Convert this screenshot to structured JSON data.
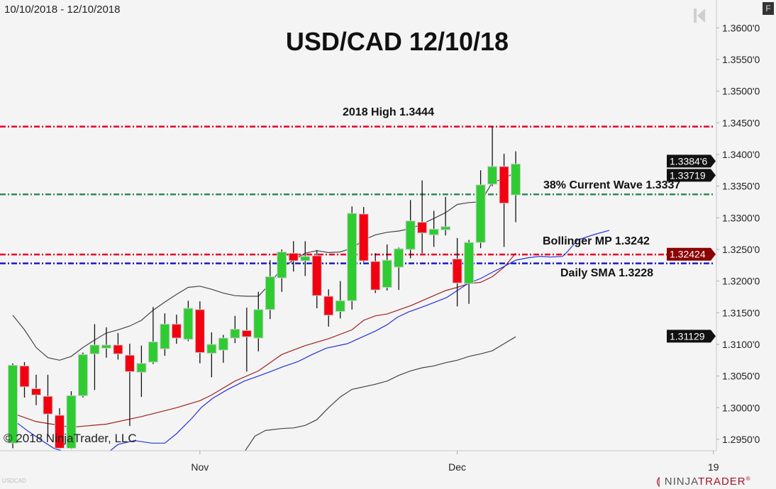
{
  "header": {
    "date_range": "10/10/2018 - 12/10/2018",
    "f_button": "F"
  },
  "footer": {
    "symbol": "USDCAD",
    "copyright": "© 2018 NinjaTrader, LLC",
    "logo_a": "NINJA",
    "logo_b": "TRADER",
    "logo_mark": "®"
  },
  "colors": {
    "background": "#f4f4f4",
    "up": "#2ecc31",
    "down": "#f20010",
    "high_line": "#e8002a",
    "wave_line": "#2e8b57",
    "bollinger_line": "#e8002a",
    "sma_line": "#1a1acc",
    "upper_line": "#444444",
    "middle_line": "#a02020",
    "blue_line": "#2233dd",
    "lower_line": "#444444"
  },
  "chart_data": {
    "type": "candlestick",
    "title": "USD/CAD 12/10/18",
    "ylim": [
      1.2932,
      1.3644
    ],
    "yticks": [
      {
        "value": 1.36,
        "label": "1.3600'0"
      },
      {
        "value": 1.355,
        "label": "1.3550'0"
      },
      {
        "value": 1.35,
        "label": "1.3500'0"
      },
      {
        "value": 1.345,
        "label": "1.3450'0"
      },
      {
        "value": 1.34,
        "label": "1.3400'0"
      },
      {
        "value": 1.335,
        "label": "1.3350'0"
      },
      {
        "value": 1.33,
        "label": "1.3300'0"
      },
      {
        "value": 1.325,
        "label": "1.3250'0"
      },
      {
        "value": 1.32,
        "label": "1.3200'0"
      },
      {
        "value": 1.315,
        "label": "1.3150'0"
      },
      {
        "value": 1.31,
        "label": "1.3100'0"
      },
      {
        "value": 1.305,
        "label": "1.3050'0"
      },
      {
        "value": 1.3,
        "label": "1.3000'0"
      },
      {
        "value": 1.295,
        "label": "1.2950'0"
      }
    ],
    "xticks": [
      {
        "label": "Nov",
        "date": "2018-11-01"
      },
      {
        "label": "Dec",
        "date": "2018-12-03"
      },
      {
        "label": "19",
        "date": "2019-01-01"
      }
    ],
    "candles": [
      [
        "2018-10-10",
        1.2944,
        1.307,
        1.2936,
        1.3067
      ],
      [
        "2018-10-11",
        1.3066,
        1.3072,
        1.3016,
        1.3033
      ],
      [
        "2018-10-12",
        1.303,
        1.3052,
        1.3004,
        1.302
      ],
      [
        "2018-10-15",
        1.3018,
        1.3052,
        1.2955,
        1.299
      ],
      [
        "2018-10-16",
        1.2988,
        1.2999,
        1.2935,
        1.2936
      ],
      [
        "2018-10-17",
        1.2936,
        1.3026,
        1.2935,
        1.3019
      ],
      [
        "2018-10-18",
        1.3019,
        1.3087,
        1.3016,
        1.3084
      ],
      [
        "2018-10-19",
        1.3085,
        1.3132,
        1.3028,
        1.3099
      ],
      [
        "2018-10-22",
        1.3094,
        1.3127,
        1.3079,
        1.3099
      ],
      [
        "2018-10-23",
        1.3099,
        1.3118,
        1.3076,
        1.3085
      ],
      [
        "2018-10-24",
        1.3083,
        1.3101,
        1.2971,
        1.3057
      ],
      [
        "2018-10-25",
        1.3056,
        1.3098,
        1.3017,
        1.307
      ],
      [
        "2018-10-26",
        1.3072,
        1.3159,
        1.3069,
        1.3104
      ],
      [
        "2018-10-29",
        1.3093,
        1.3149,
        1.3082,
        1.3132
      ],
      [
        "2018-10-30",
        1.3132,
        1.3147,
        1.3101,
        1.311
      ],
      [
        "2018-10-31",
        1.3108,
        1.3169,
        1.3105,
        1.3157
      ],
      [
        "2018-11-01",
        1.3155,
        1.3168,
        1.307,
        1.3087
      ],
      [
        "2018-11-02",
        1.3086,
        1.3119,
        1.3048,
        1.31
      ],
      [
        "2018-11-05",
        1.3091,
        1.3115,
        1.3071,
        1.311
      ],
      [
        "2018-11-06",
        1.311,
        1.3145,
        1.3102,
        1.3124
      ],
      [
        "2018-11-07",
        1.3122,
        1.3158,
        1.3057,
        1.3112
      ],
      [
        "2018-11-08",
        1.311,
        1.3183,
        1.3089,
        1.3155
      ],
      [
        "2018-11-09",
        1.3155,
        1.3233,
        1.314,
        1.3207
      ],
      [
        "2018-11-12",
        1.3205,
        1.325,
        1.3183,
        1.3246
      ],
      [
        "2018-11-13",
        1.3244,
        1.3263,
        1.3215,
        1.3232
      ],
      [
        "2018-11-14",
        1.3232,
        1.3263,
        1.3208,
        1.3239
      ],
      [
        "2018-11-15",
        1.324,
        1.3249,
        1.3157,
        1.3177
      ],
      [
        "2018-11-16",
        1.3176,
        1.3187,
        1.3128,
        1.3146
      ],
      [
        "2018-11-19",
        1.3152,
        1.32,
        1.3141,
        1.3169
      ],
      [
        "2018-11-20",
        1.3169,
        1.3318,
        1.3155,
        1.3307
      ],
      [
        "2018-11-21",
        1.3306,
        1.3317,
        1.323,
        1.3232
      ],
      [
        "2018-11-22",
        1.3231,
        1.3244,
        1.3181,
        1.3186
      ],
      [
        "2018-11-23",
        1.319,
        1.3258,
        1.3185,
        1.3233
      ],
      [
        "2018-11-26",
        1.3222,
        1.3253,
        1.3186,
        1.3251
      ],
      [
        "2018-11-27",
        1.325,
        1.3328,
        1.3236,
        1.3295
      ],
      [
        "2018-11-28",
        1.3293,
        1.3359,
        1.3244,
        1.3276
      ],
      [
        "2018-11-29",
        1.3273,
        1.3311,
        1.3254,
        1.3282
      ],
      [
        "2018-11-30",
        1.3281,
        1.3333,
        1.3272,
        1.3286
      ],
      [
        "2018-12-03",
        1.3235,
        1.3268,
        1.316,
        1.3197
      ],
      [
        "2018-12-04",
        1.3196,
        1.3265,
        1.3164,
        1.3261
      ],
      [
        "2018-12-05",
        1.3261,
        1.3375,
        1.3252,
        1.3352
      ],
      [
        "2018-12-06",
        1.3353,
        1.3444,
        1.335,
        1.3381
      ],
      [
        "2018-12-07",
        1.3381,
        1.3401,
        1.3254,
        1.3323
      ],
      [
        "2018-12-10",
        1.3336,
        1.3405,
        1.3293,
        1.3385
      ]
    ],
    "lines": [
      {
        "key": "upper_line",
        "points": [
          [
            0,
            1.3146
          ],
          [
            1,
            1.3123
          ],
          [
            2,
            1.3095
          ],
          [
            3,
            1.3079
          ],
          [
            4,
            1.3075
          ],
          [
            5,
            1.3081
          ],
          [
            6,
            1.3095
          ],
          [
            7,
            1.3107
          ],
          [
            8,
            1.3118
          ],
          [
            9,
            1.3123
          ],
          [
            10,
            1.3129
          ],
          [
            11,
            1.3138
          ],
          [
            12,
            1.3154
          ],
          [
            13,
            1.3167
          ],
          [
            14,
            1.3179
          ],
          [
            15,
            1.319
          ],
          [
            16,
            1.3192
          ],
          [
            17,
            1.3187
          ],
          [
            18,
            1.3181
          ],
          [
            19,
            1.3177
          ],
          [
            20,
            1.3176
          ],
          [
            21,
            1.3176
          ],
          [
            22,
            1.3196
          ],
          [
            23,
            1.3221
          ],
          [
            24,
            1.3233
          ],
          [
            25,
            1.3244
          ],
          [
            26,
            1.3248
          ],
          [
            27,
            1.3245
          ],
          [
            28,
            1.3246
          ],
          [
            29,
            1.3252
          ],
          [
            30,
            1.3265
          ],
          [
            31,
            1.3273
          ],
          [
            32,
            1.3277
          ],
          [
            33,
            1.3279
          ],
          [
            34,
            1.3283
          ],
          [
            35,
            1.329
          ],
          [
            36,
            1.3299
          ],
          [
            37,
            1.3308
          ],
          [
            38,
            1.3321
          ],
          [
            39,
            1.3324
          ],
          [
            40,
            1.3325
          ],
          [
            41,
            1.3356
          ],
          [
            42,
            1.3362
          ],
          [
            43,
            1.3372
          ]
        ]
      },
      {
        "key": "middle_line",
        "points": [
          [
            0,
            1.2991
          ],
          [
            2,
            1.2978
          ],
          [
            5,
            1.2969
          ],
          [
            8,
            1.2974
          ],
          [
            11,
            1.2986
          ],
          [
            14,
            1.3
          ],
          [
            16,
            1.3011
          ],
          [
            17,
            1.302
          ],
          [
            19,
            1.3042
          ],
          [
            21,
            1.3058
          ],
          [
            22,
            1.3071
          ],
          [
            23,
            1.3084
          ],
          [
            25,
            1.3098
          ],
          [
            27,
            1.3109
          ],
          [
            29,
            1.3123
          ],
          [
            30,
            1.3138
          ],
          [
            31,
            1.3145
          ],
          [
            32,
            1.3148
          ],
          [
            34,
            1.3161
          ],
          [
            35,
            1.3169
          ],
          [
            37,
            1.3185
          ],
          [
            38,
            1.319
          ],
          [
            39,
            1.3196
          ],
          [
            40,
            1.3198
          ],
          [
            41,
            1.3207
          ],
          [
            42,
            1.3222
          ],
          [
            43,
            1.3244
          ]
        ]
      },
      {
        "key": "blue_line",
        "points": [
          [
            0,
            1.2981
          ],
          [
            1.3,
            1.2963
          ],
          [
            2.5,
            1.2948
          ],
          [
            3.5,
            1.2936
          ],
          [
            5,
            1.2927
          ],
          [
            8,
            1.2927
          ],
          [
            9,
            1.2942
          ],
          [
            10.4,
            1.2948
          ],
          [
            11.9,
            1.2944
          ],
          [
            13,
            1.2944
          ],
          [
            14,
            1.2959
          ],
          [
            15.3,
            1.2983
          ],
          [
            16.1,
            1.3
          ],
          [
            17.1,
            1.3015
          ],
          [
            18.3,
            1.3028
          ],
          [
            19.8,
            1.3042
          ],
          [
            20.7,
            1.3048
          ],
          [
            21.9,
            1.3056
          ],
          [
            23,
            1.3064
          ],
          [
            24.4,
            1.3073
          ],
          [
            25.6,
            1.3084
          ],
          [
            26.8,
            1.3094
          ],
          [
            28.6,
            1.3101
          ],
          [
            29.8,
            1.3111
          ],
          [
            31,
            1.3121
          ],
          [
            32,
            1.3131
          ],
          [
            32.9,
            1.3143
          ],
          [
            33.8,
            1.3151
          ],
          [
            35.3,
            1.3161
          ],
          [
            37.1,
            1.3174
          ],
          [
            38,
            1.3185
          ],
          [
            39,
            1.3197
          ],
          [
            40,
            1.3204
          ],
          [
            41,
            1.3214
          ],
          [
            42,
            1.3223
          ],
          [
            43,
            1.3233
          ],
          [
            44.1,
            1.3237
          ],
          [
            45,
            1.3239
          ],
          [
            46,
            1.3238
          ],
          [
            47,
            1.3239
          ],
          [
            47.4,
            1.3246
          ],
          [
            48.3,
            1.3265
          ],
          [
            49.8,
            1.3274
          ],
          [
            51,
            1.328
          ]
        ]
      },
      {
        "key": "lower_line",
        "points": [
          [
            19.8,
            1.293
          ],
          [
            20.7,
            1.2955
          ],
          [
            21.6,
            1.2964
          ],
          [
            23,
            1.2967
          ],
          [
            24,
            1.2968
          ],
          [
            25,
            1.2972
          ],
          [
            26,
            1.2981
          ],
          [
            27,
            1.3
          ],
          [
            28,
            1.3017
          ],
          [
            29,
            1.3029
          ],
          [
            30,
            1.3033
          ],
          [
            31,
            1.3037
          ],
          [
            32,
            1.3042
          ],
          [
            33,
            1.3051
          ],
          [
            34,
            1.3058
          ],
          [
            35,
            1.3063
          ],
          [
            36,
            1.3066
          ],
          [
            37,
            1.3071
          ],
          [
            38,
            1.3075
          ],
          [
            39,
            1.3081
          ],
          [
            40,
            1.3085
          ],
          [
            41,
            1.309
          ],
          [
            42,
            1.3101
          ],
          [
            43,
            1.3112
          ]
        ]
      }
    ],
    "hlines": [
      {
        "value": 1.3444,
        "color_key": "high_line",
        "label": "2018 High 1.3444"
      },
      {
        "value": 1.3337,
        "color_key": "wave_line",
        "label": "38% Current Wave 1.3337"
      },
      {
        "value": 1.3242,
        "color_key": "bollinger_line",
        "label": "Bollinger MP 1.3242"
      },
      {
        "value": 1.3228,
        "color_key": "sma_line",
        "label": "Daily SMA 1.3228"
      }
    ],
    "price_tags": [
      {
        "value": 1.33719,
        "label": "1.33719",
        "bg": "#111111"
      },
      {
        "value": 1.33846,
        "label": "1.3384'6",
        "bg": "#111111"
      },
      {
        "value": 1.32424,
        "label": "1.32424",
        "bg": "#8b0000"
      },
      {
        "value": 1.31129,
        "label": "1.31129",
        "bg": "#111111"
      }
    ]
  }
}
